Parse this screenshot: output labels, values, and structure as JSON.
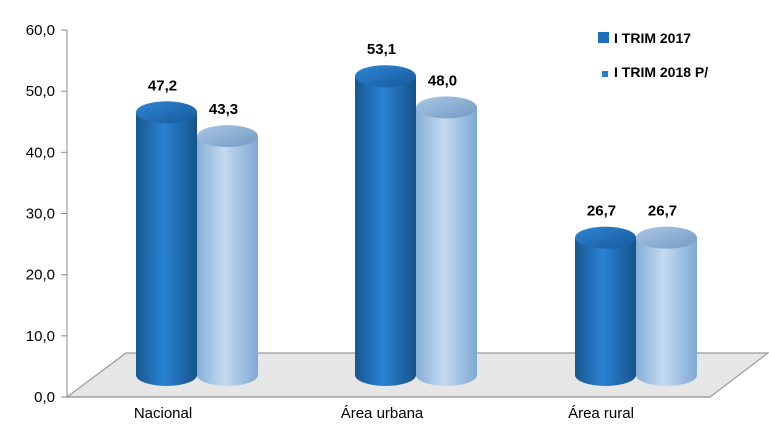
{
  "chart_data": {
    "type": "bar",
    "categories": [
      "Nacional",
      "Área urbana",
      "Área rural"
    ],
    "series": [
      {
        "name": "I TRIM 2017",
        "color": "#1f6fbf",
        "values": [
          47.2,
          53.1,
          26.7
        ],
        "labels": [
          "47,2",
          "53,1",
          "26,7"
        ]
      },
      {
        "name": "I TRIM 2018 P/",
        "color": "#9cc3e6",
        "values": [
          43.3,
          48.0,
          26.7
        ],
        "labels": [
          "43,3",
          "48,0",
          "26,7"
        ]
      }
    ],
    "ylim": [
      0,
      60
    ],
    "yticks": [
      0,
      10,
      20,
      30,
      40,
      50,
      60
    ],
    "ytick_labels": [
      "0,0",
      "10,0",
      "20,0",
      "30,0",
      "40,0",
      "50,0",
      "60,0"
    ],
    "legend_position": "top-right",
    "bar_shape": "cylinder",
    "grid": false
  }
}
